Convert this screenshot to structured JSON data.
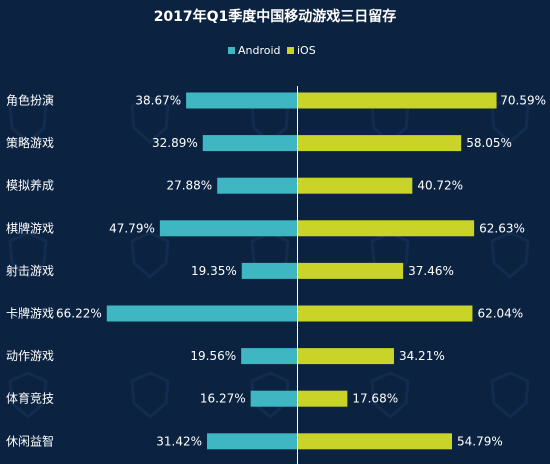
{
  "chart_data": {
    "type": "bar",
    "orientation": "horizontal-diverging",
    "title": "2017年Q1季度中国移动游戏三日留存",
    "legend_position": "top-center",
    "grid": false,
    "categories": [
      "角色扮演",
      "策略游戏",
      "模拟养成",
      "棋牌游戏",
      "射击游戏",
      "卡牌游戏",
      "动作游戏",
      "体育竞技",
      "休闲益智"
    ],
    "series": [
      {
        "name": "Android",
        "color": "#3fb7c3",
        "values": [
          38.67,
          32.89,
          27.88,
          47.79,
          19.35,
          66.22,
          19.56,
          16.27,
          31.42
        ],
        "labels": [
          "38.67%",
          "32.89%",
          "27.88%",
          "47.79%",
          "19.35%",
          "66.22%",
          "19.56%",
          "16.27%",
          "31.42%"
        ]
      },
      {
        "name": "iOS",
        "color": "#c9d328",
        "values": [
          70.59,
          58.05,
          40.72,
          62.63,
          37.46,
          62.04,
          34.21,
          17.68,
          54.79
        ],
        "labels": [
          "70.59%",
          "58.05%",
          "40.72%",
          "62.63%",
          "37.46%",
          "62.04%",
          "34.21%",
          "17.68%",
          "54.79%"
        ]
      }
    ]
  }
}
